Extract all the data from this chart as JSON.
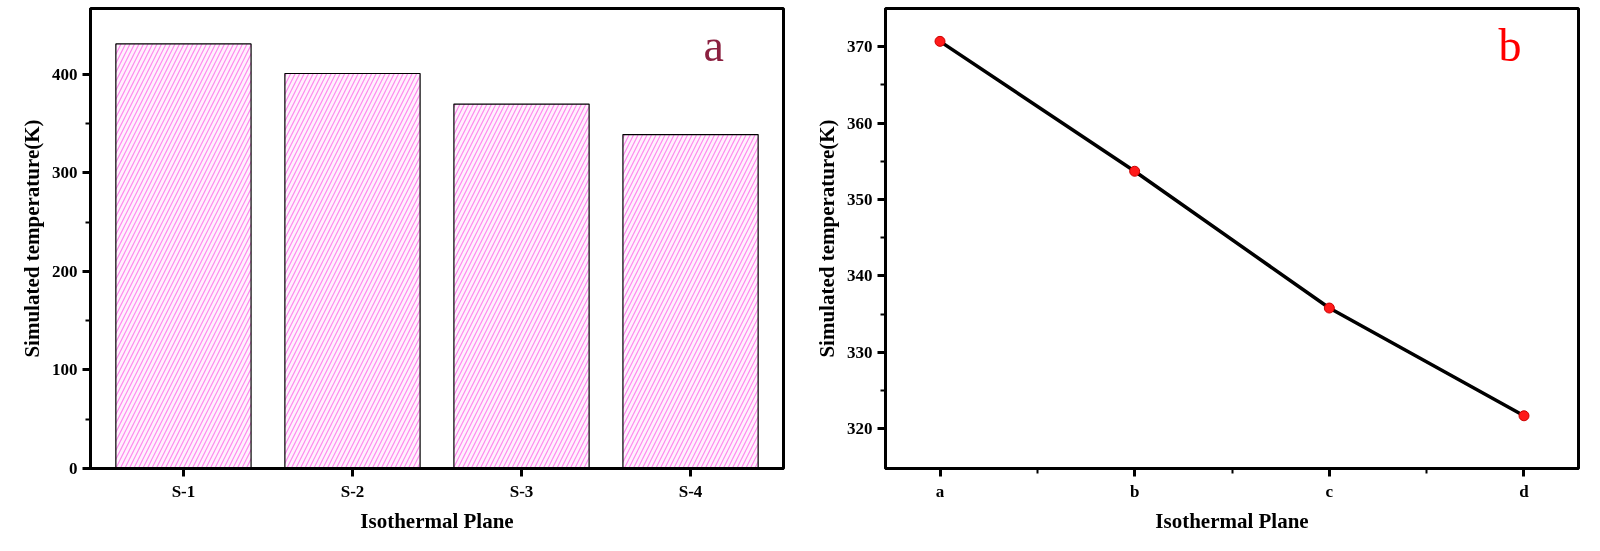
{
  "chart_data": [
    {
      "type": "bar",
      "xlabel": "Isothermal Plane",
      "ylabel": "Simulated temperature(K)",
      "categories": [
        "S-1",
        "S-2",
        "S-3",
        "S-4"
      ],
      "values": [
        431,
        401,
        370,
        339
      ],
      "color": "#ff88ee",
      "ylim": [
        0,
        467
      ],
      "yticks": [
        0,
        100,
        200,
        300,
        400
      ],
      "grid": false,
      "annotations": [
        "a"
      ]
    },
    {
      "type": "line",
      "xlabel": "Isothermal Plane",
      "ylabel": "Simulated temperature(K)",
      "categories": [
        "a",
        "b",
        "c",
        "d"
      ],
      "series": [
        {
          "color": "#000000",
          "values": [
            370.7,
            353.7,
            335.8,
            321.7
          ]
        }
      ],
      "marker": "circle",
      "line_style": "solid",
      "ylim": [
        314.8,
        375
      ],
      "yticks": [
        320,
        330,
        340,
        350,
        360,
        370
      ],
      "grid": false,
      "annotations": [
        "b"
      ]
    }
  ]
}
